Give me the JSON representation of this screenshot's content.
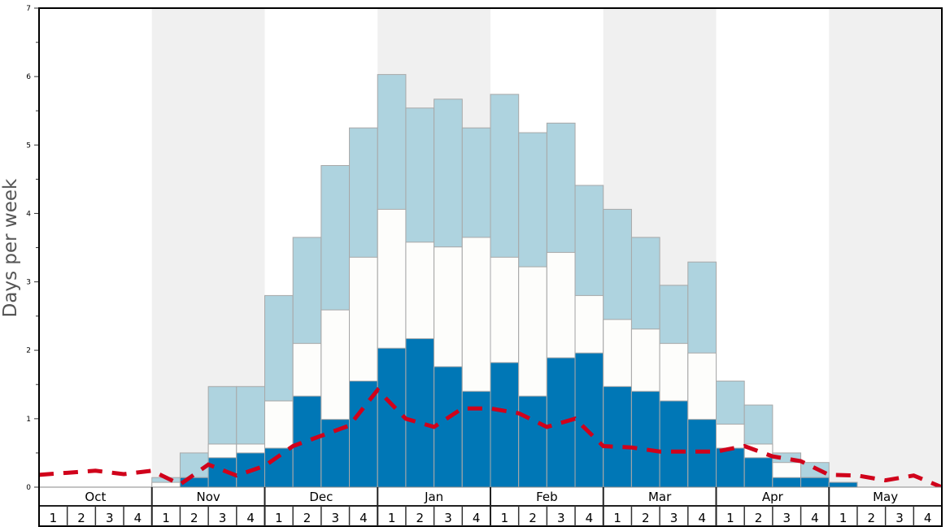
{
  "chart_data": {
    "type": "bar",
    "stacked": true,
    "ylabel": "Days per week",
    "ylim": [
      0,
      7
    ],
    "yticks": [
      "0",
      "1",
      "2",
      "3",
      "4",
      "5",
      "6",
      "7"
    ],
    "months": [
      "Oct",
      "Nov",
      "Dec",
      "Jan",
      "Feb",
      "Mar",
      "Apr",
      "May"
    ],
    "week_labels": [
      "1",
      "2",
      "3",
      "4"
    ],
    "shaded_months": [
      "Nov",
      "Jan",
      "Mar",
      "May"
    ],
    "series": [
      {
        "name": "dark",
        "color": "#0077b6",
        "values": [
          0,
          0,
          0,
          0,
          0,
          0.14,
          0.43,
          0.5,
          0.57,
          1.33,
          0.99,
          1.55,
          2.03,
          2.17,
          1.76,
          1.4,
          1.82,
          1.33,
          1.89,
          1.96,
          1.47,
          1.4,
          1.26,
          0.99,
          0.57,
          0.43,
          0.14,
          0.14,
          0.07,
          0,
          0,
          0
        ]
      },
      {
        "name": "middle",
        "color": "#fdfdfb",
        "values": [
          0,
          0,
          0,
          0,
          0.07,
          0.14,
          0.63,
          0.63,
          1.26,
          2.1,
          2.59,
          3.36,
          4.06,
          3.58,
          3.51,
          3.65,
          3.36,
          3.22,
          3.43,
          2.8,
          2.45,
          2.31,
          2.1,
          1.96,
          0.92,
          0.63,
          0.36,
          0.14,
          0.07,
          0,
          0,
          0
        ]
      },
      {
        "name": "total",
        "color": "#aed3df",
        "values": [
          0,
          0,
          0,
          0,
          0.14,
          0.5,
          1.47,
          1.47,
          2.8,
          3.65,
          4.7,
          5.25,
          6.03,
          5.54,
          5.67,
          5.25,
          5.74,
          5.18,
          5.32,
          4.41,
          4.06,
          3.65,
          2.95,
          3.29,
          1.55,
          1.2,
          0.5,
          0.36,
          0.07,
          0,
          0,
          0
        ]
      }
    ],
    "line": {
      "name": "average",
      "color": "#d0021b",
      "values": [
        0.18,
        0.21,
        0.24,
        0.19,
        0.24,
        0.04,
        0.33,
        0.17,
        0.31,
        0.6,
        0.75,
        0.9,
        1.42,
        1.0,
        0.88,
        1.15,
        1.15,
        1.08,
        0.88,
        1.0,
        0.6,
        0.58,
        0.52,
        0.52,
        0.52,
        0.6,
        0.45,
        0.38,
        0.18,
        0.17,
        0.1,
        0.17,
        0.0
      ]
    }
  }
}
